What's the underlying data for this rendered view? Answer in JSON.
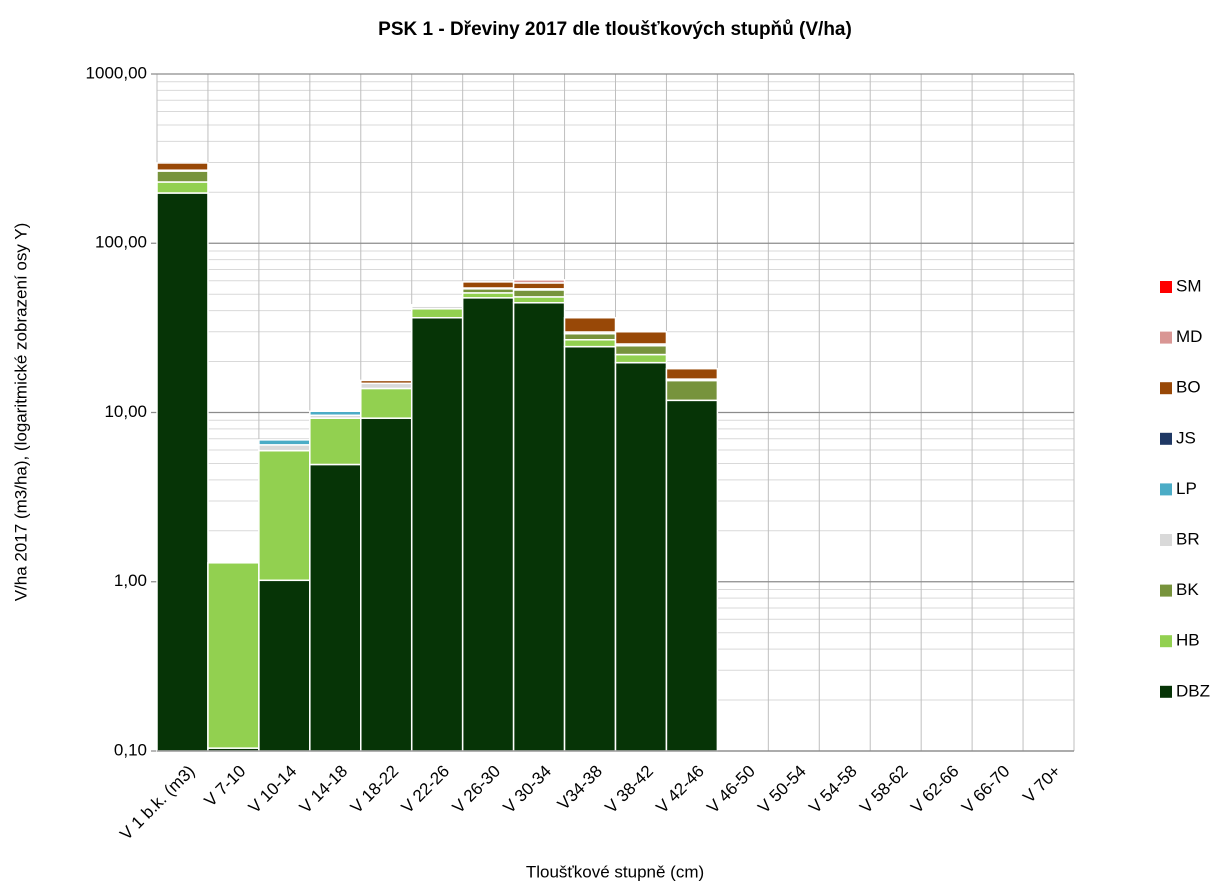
{
  "chart_data": {
    "type": "bar",
    "stacked": true,
    "log_scale": true,
    "grid": true,
    "minor_grid": true,
    "legend": "right",
    "title": "PSK 1 - Dřeviny 2017 dle tloušťkových stupňů (V/ha)",
    "x_label": "Tloušťkové stupně (cm)",
    "y_label": "V/ha 2017 (m3/ha), (logaritmické zobrazení osy Y)",
    "categories": [
      "V 1  b.k. (m3)",
      "V 7-10",
      "V 10-14",
      "V 14-18",
      "V 18-22",
      "V 22-26",
      "V 26-30",
      "V 30-34",
      "V34-38",
      "V 38-42",
      "V 42-46",
      "V 46-50",
      "V 50-54",
      "V 54-58",
      "V 58-62",
      "V 62-66",
      "V 66-70",
      "V 70+"
    ],
    "ylim": [
      0.1,
      1000
    ],
    "yticks": [
      {
        "value": 0.1,
        "label": "0,10"
      },
      {
        "value": 1,
        "label": "1,00"
      },
      {
        "value": 10,
        "label": "10,00"
      },
      {
        "value": 100,
        "label": "100,00"
      },
      {
        "value": 1000,
        "label": "1000,00"
      }
    ],
    "series": [
      {
        "name": "DBZ",
        "color": "#063406",
        "values": [
          198,
          0.004,
          0.92,
          4.83,
          9.16,
          36.2,
          47.5,
          44.4,
          24.4,
          19.6,
          11.7,
          null,
          null,
          null,
          null,
          null,
          null,
          null
        ]
      },
      {
        "name": "HB",
        "color": "#92d050",
        "values": [
          32,
          1.19,
          4.93,
          4.33,
          4.61,
          4.7,
          3.3,
          3.7,
          2.4,
          2.3,
          null,
          null,
          null,
          null,
          null,
          null,
          null,
          null
        ]
      },
      {
        "name": "BK",
        "color": "#77933c",
        "values": [
          37,
          null,
          null,
          null,
          null,
          null,
          2.9,
          4.8,
          2.3,
          2.8,
          3.65,
          null,
          null,
          null,
          null,
          null,
          null,
          null
        ]
      },
      {
        "name": "BR",
        "color": "#d9d9d9",
        "values": [
          3,
          null,
          0.49,
          0.37,
          1.0,
          1.5,
          0.6,
          0.8,
          0.7,
          0.6,
          0.3,
          null,
          null,
          null,
          null,
          null,
          null,
          null
        ]
      },
      {
        "name": "LP",
        "color": "#4bacc6",
        "values": [
          null,
          null,
          0.45,
          0.54,
          null,
          null,
          null,
          null,
          null,
          null,
          null,
          null,
          null,
          null,
          null,
          null,
          null,
          null
        ]
      },
      {
        "name": "JS",
        "color": "#1f3864",
        "values": [
          null,
          null,
          null,
          null,
          null,
          null,
          null,
          null,
          null,
          null,
          null,
          null,
          null,
          null,
          null,
          null,
          null,
          null
        ]
      },
      {
        "name": "BO",
        "color": "#984807",
        "values": [
          28,
          null,
          null,
          null,
          0.6,
          0.8,
          4.7,
          4.5,
          6.4,
          4.6,
          2.4,
          null,
          null,
          null,
          null,
          null,
          null,
          null
        ]
      },
      {
        "name": "MD",
        "color": "#d99694",
        "values": [
          null,
          null,
          null,
          null,
          null,
          null,
          null,
          2.5,
          null,
          null,
          null,
          null,
          null,
          null,
          null,
          null,
          null,
          null
        ]
      },
      {
        "name": "SM",
        "color": "#ff0000",
        "values": [
          null,
          null,
          null,
          null,
          null,
          null,
          null,
          null,
          null,
          null,
          null,
          null,
          null,
          null,
          null,
          null,
          null,
          null
        ]
      }
    ]
  }
}
